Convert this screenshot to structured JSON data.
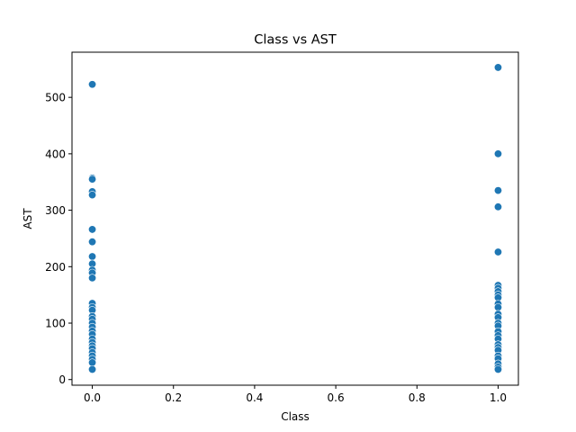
{
  "chart_data": {
    "type": "scatter",
    "title": "Class vs AST",
    "xlabel": "Class",
    "ylabel": "AST",
    "xlim": [
      -0.05,
      1.05
    ],
    "ylim": [
      -10,
      580
    ],
    "xticks": [
      "0.0",
      "0.2",
      "0.4",
      "0.6",
      "0.8",
      "1.0"
    ],
    "xtick_values": [
      0,
      0.2,
      0.4,
      0.6,
      0.8,
      1.0
    ],
    "yticks": [
      "0",
      "100",
      "200",
      "300",
      "400",
      "500"
    ],
    "ytick_values": [
      0,
      100,
      200,
      300,
      400,
      500
    ],
    "grid": false,
    "point_color": "#1f77b4",
    "points": [
      {
        "x": 0,
        "y": 523
      },
      {
        "x": 0,
        "y": 357
      },
      {
        "x": 0,
        "y": 355
      },
      {
        "x": 0,
        "y": 333
      },
      {
        "x": 0,
        "y": 327
      },
      {
        "x": 0,
        "y": 266
      },
      {
        "x": 0,
        "y": 244
      },
      {
        "x": 0,
        "y": 218
      },
      {
        "x": 0,
        "y": 205
      },
      {
        "x": 0,
        "y": 194
      },
      {
        "x": 0,
        "y": 189
      },
      {
        "x": 0,
        "y": 180
      },
      {
        "x": 0,
        "y": 135
      },
      {
        "x": 0,
        "y": 128
      },
      {
        "x": 0,
        "y": 123
      },
      {
        "x": 0,
        "y": 112
      },
      {
        "x": 0,
        "y": 107
      },
      {
        "x": 0,
        "y": 100
      },
      {
        "x": 0,
        "y": 93
      },
      {
        "x": 0,
        "y": 86
      },
      {
        "x": 0,
        "y": 80
      },
      {
        "x": 0,
        "y": 72
      },
      {
        "x": 0,
        "y": 66
      },
      {
        "x": 0,
        "y": 60
      },
      {
        "x": 0,
        "y": 55
      },
      {
        "x": 0,
        "y": 48
      },
      {
        "x": 0,
        "y": 42
      },
      {
        "x": 0,
        "y": 36
      },
      {
        "x": 0,
        "y": 30
      },
      {
        "x": 0,
        "y": 18
      },
      {
        "x": 1,
        "y": 553
      },
      {
        "x": 1,
        "y": 400
      },
      {
        "x": 1,
        "y": 335
      },
      {
        "x": 1,
        "y": 306
      },
      {
        "x": 1,
        "y": 226
      },
      {
        "x": 1,
        "y": 167
      },
      {
        "x": 1,
        "y": 162
      },
      {
        "x": 1,
        "y": 156
      },
      {
        "x": 1,
        "y": 150
      },
      {
        "x": 1,
        "y": 145
      },
      {
        "x": 1,
        "y": 134
      },
      {
        "x": 1,
        "y": 128
      },
      {
        "x": 1,
        "y": 116
      },
      {
        "x": 1,
        "y": 110
      },
      {
        "x": 1,
        "y": 100
      },
      {
        "x": 1,
        "y": 95
      },
      {
        "x": 1,
        "y": 85
      },
      {
        "x": 1,
        "y": 78
      },
      {
        "x": 1,
        "y": 72
      },
      {
        "x": 1,
        "y": 62
      },
      {
        "x": 1,
        "y": 57
      },
      {
        "x": 1,
        "y": 52
      },
      {
        "x": 1,
        "y": 42
      },
      {
        "x": 1,
        "y": 37
      },
      {
        "x": 1,
        "y": 28
      },
      {
        "x": 1,
        "y": 22
      },
      {
        "x": 1,
        "y": 18
      }
    ]
  }
}
